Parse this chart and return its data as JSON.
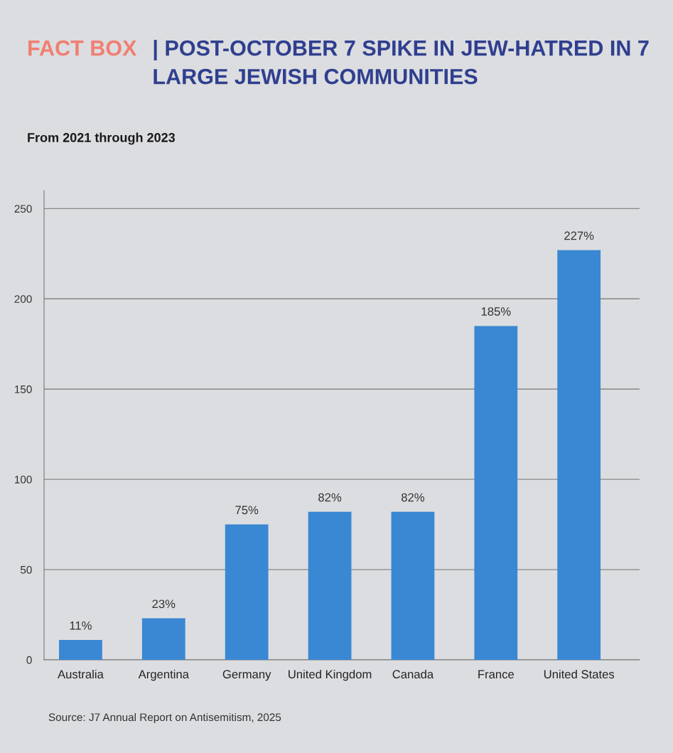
{
  "chart_data": {
    "type": "bar",
    "title": "FACT BOX",
    "subtitle": "From 2021 through 2023",
    "annotations": [
      "| POST-OCTOBER 7 SPIKE IN JEW-HATRED IN 7 LARGE JEWISH COMMUNITIES",
      "Source: J7 Annual Report on Antisemitism, 2025"
    ],
    "categories": [
      "Australia",
      "Argentina",
      "Germany",
      "United Kingdom",
      "Canada",
      "France",
      "United States"
    ],
    "values": [
      11,
      23,
      75,
      82,
      82,
      185,
      227
    ],
    "value_labels": [
      "11%",
      "23%",
      "75%",
      "82%",
      "82%",
      "185%",
      "227%"
    ],
    "color": "#3a87d4",
    "ylim": [
      0,
      260
    ],
    "yticks": [
      0,
      50,
      100,
      150,
      200,
      250
    ],
    "grid": "y",
    "legend": false
  }
}
